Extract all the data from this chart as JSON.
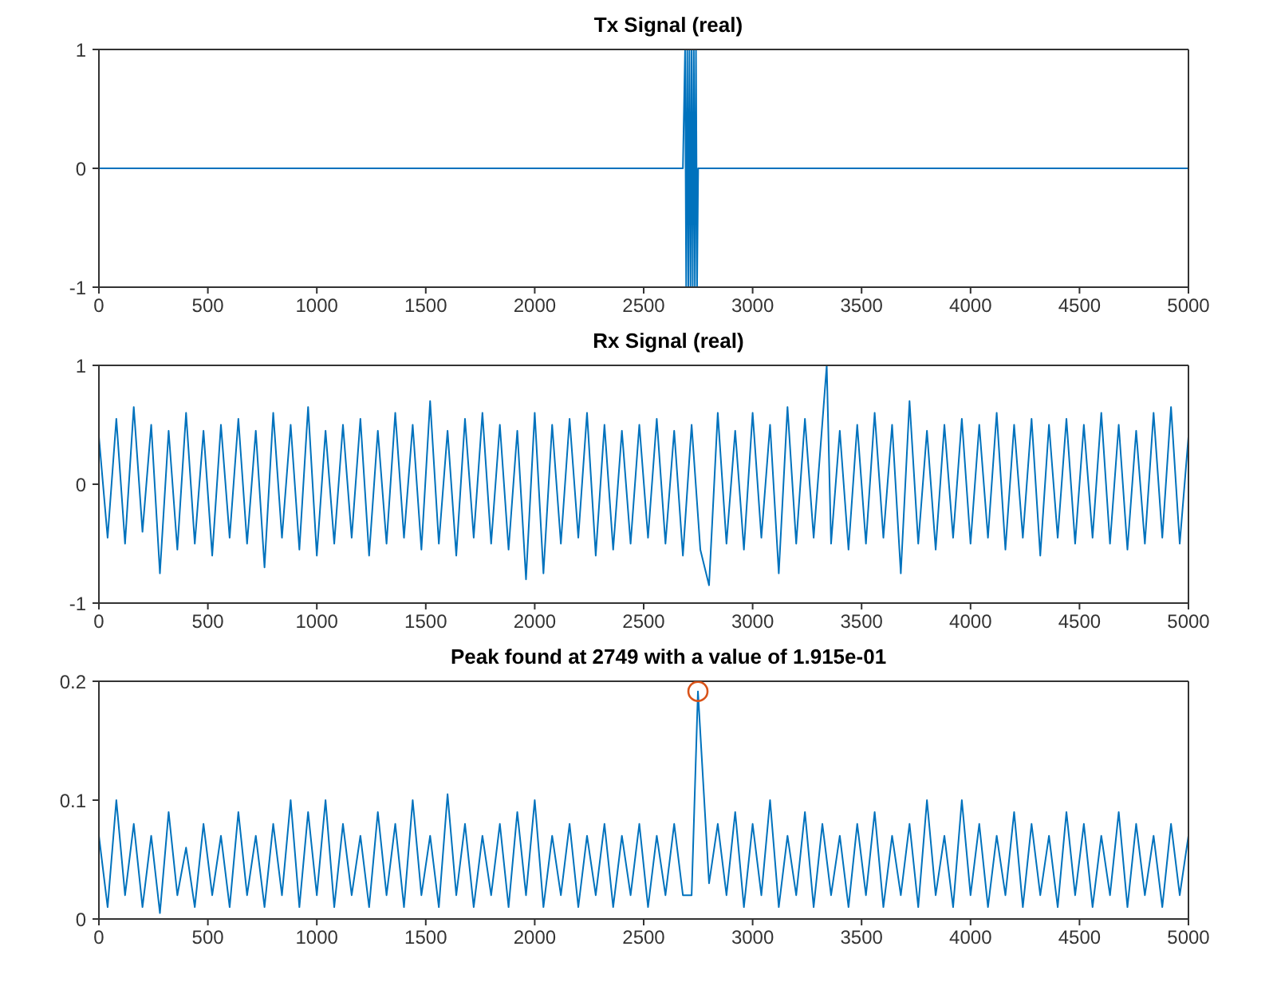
{
  "chart_data": [
    {
      "type": "line",
      "title": "Tx Signal (real)",
      "x": [
        0,
        2680,
        2690,
        2695,
        2700,
        2705,
        2710,
        2715,
        2720,
        2725,
        2730,
        2735,
        2740,
        2745,
        2750,
        5000
      ],
      "series": [
        {
          "color": "#0072bd",
          "values": [
            0,
            0,
            1,
            -1,
            1,
            -1,
            1,
            -1,
            1,
            -1,
            1,
            -1,
            1,
            -1,
            0,
            0
          ]
        }
      ],
      "xlim": [
        0,
        5000
      ],
      "xticks": [
        0,
        500,
        1000,
        1500,
        2000,
        2500,
        3000,
        3500,
        4000,
        4500,
        5000
      ],
      "ylim": [
        -1,
        1
      ],
      "yticks": [
        -1,
        0,
        1
      ]
    },
    {
      "type": "line",
      "title": "Rx Signal (real)",
      "x": [
        0,
        40,
        80,
        120,
        160,
        200,
        240,
        280,
        320,
        360,
        400,
        440,
        480,
        520,
        560,
        600,
        640,
        680,
        720,
        760,
        800,
        840,
        880,
        920,
        960,
        1000,
        1040,
        1080,
        1120,
        1160,
        1200,
        1240,
        1280,
        1320,
        1360,
        1400,
        1440,
        1480,
        1520,
        1560,
        1600,
        1640,
        1680,
        1720,
        1760,
        1800,
        1840,
        1880,
        1920,
        1960,
        2000,
        2040,
        2080,
        2120,
        2160,
        2200,
        2240,
        2280,
        2320,
        2360,
        2400,
        2440,
        2480,
        2520,
        2560,
        2600,
        2640,
        2680,
        2720,
        2760,
        2800,
        2840,
        2880,
        2920,
        2960,
        3000,
        3040,
        3080,
        3120,
        3160,
        3200,
        3240,
        3280,
        3340,
        3360,
        3400,
        3440,
        3480,
        3520,
        3560,
        3600,
        3640,
        3680,
        3720,
        3760,
        3800,
        3840,
        3880,
        3920,
        3960,
        4000,
        4040,
        4080,
        4120,
        4160,
        4200,
        4240,
        4280,
        4320,
        4360,
        4400,
        4440,
        4480,
        4520,
        4560,
        4600,
        4640,
        4680,
        4720,
        4760,
        4800,
        4840,
        4880,
        4920,
        4960,
        5000
      ],
      "series": [
        {
          "color": "#0072bd",
          "values": [
            0.4,
            -0.45,
            0.55,
            -0.5,
            0.65,
            -0.4,
            0.5,
            -0.75,
            0.45,
            -0.55,
            0.6,
            -0.5,
            0.45,
            -0.6,
            0.5,
            -0.45,
            0.55,
            -0.5,
            0.45,
            -0.7,
            0.6,
            -0.45,
            0.5,
            -0.55,
            0.65,
            -0.6,
            0.45,
            -0.5,
            0.5,
            -0.45,
            0.55,
            -0.6,
            0.45,
            -0.5,
            0.6,
            -0.45,
            0.5,
            -0.55,
            0.7,
            -0.5,
            0.45,
            -0.6,
            0.55,
            -0.45,
            0.6,
            -0.5,
            0.5,
            -0.55,
            0.45,
            -0.8,
            0.6,
            -0.75,
            0.5,
            -0.5,
            0.55,
            -0.45,
            0.6,
            -0.6,
            0.5,
            -0.55,
            0.45,
            -0.5,
            0.5,
            -0.45,
            0.55,
            -0.5,
            0.45,
            -0.6,
            0.5,
            -0.55,
            -0.85,
            0.6,
            -0.5,
            0.45,
            -0.55,
            0.6,
            -0.45,
            0.5,
            -0.75,
            0.65,
            -0.5,
            0.55,
            -0.45,
            1.0,
            -0.5,
            0.45,
            -0.55,
            0.5,
            -0.5,
            0.6,
            -0.45,
            0.5,
            -0.75,
            0.7,
            -0.5,
            0.45,
            -0.55,
            0.5,
            -0.45,
            0.55,
            -0.5,
            0.5,
            -0.45,
            0.6,
            -0.55,
            0.5,
            -0.45,
            0.55,
            -0.6,
            0.5,
            -0.45,
            0.55,
            -0.5,
            0.5,
            -0.45,
            0.6,
            -0.5,
            0.5,
            -0.55,
            0.45,
            -0.5,
            0.6,
            -0.45,
            0.65,
            -0.5,
            0.4
          ]
        }
      ],
      "xlim": [
        0,
        5000
      ],
      "xticks": [
        0,
        500,
        1000,
        1500,
        2000,
        2500,
        3000,
        3500,
        4000,
        4500,
        5000
      ],
      "ylim": [
        -1,
        1
      ],
      "yticks": [
        -1,
        0,
        1
      ]
    },
    {
      "type": "line",
      "title": "Peak found at 2749 with a value of 1.915e-01",
      "x": [
        0,
        40,
        80,
        120,
        160,
        200,
        240,
        280,
        320,
        360,
        400,
        440,
        480,
        520,
        560,
        600,
        640,
        680,
        720,
        760,
        800,
        840,
        880,
        920,
        960,
        1000,
        1040,
        1080,
        1120,
        1160,
        1200,
        1240,
        1280,
        1320,
        1360,
        1400,
        1440,
        1480,
        1520,
        1560,
        1600,
        1640,
        1680,
        1720,
        1760,
        1800,
        1840,
        1880,
        1920,
        1960,
        2000,
        2040,
        2080,
        2120,
        2160,
        2200,
        2240,
        2280,
        2320,
        2360,
        2400,
        2440,
        2480,
        2520,
        2560,
        2600,
        2640,
        2680,
        2720,
        2749,
        2800,
        2840,
        2880,
        2920,
        2960,
        3000,
        3040,
        3080,
        3120,
        3160,
        3200,
        3240,
        3280,
        3320,
        3360,
        3400,
        3440,
        3480,
        3520,
        3560,
        3600,
        3640,
        3680,
        3720,
        3760,
        3800,
        3840,
        3880,
        3920,
        3960,
        4000,
        4040,
        4080,
        4120,
        4160,
        4200,
        4240,
        4280,
        4320,
        4360,
        4400,
        4440,
        4480,
        4520,
        4560,
        4600,
        4640,
        4680,
        4720,
        4760,
        4800,
        4840,
        4880,
        4920,
        4960,
        5000
      ],
      "series": [
        {
          "color": "#0072bd",
          "values": [
            0.07,
            0.01,
            0.1,
            0.02,
            0.08,
            0.01,
            0.07,
            0.005,
            0.09,
            0.02,
            0.06,
            0.01,
            0.08,
            0.02,
            0.07,
            0.01,
            0.09,
            0.02,
            0.07,
            0.01,
            0.08,
            0.02,
            0.1,
            0.01,
            0.09,
            0.02,
            0.1,
            0.01,
            0.08,
            0.02,
            0.07,
            0.01,
            0.09,
            0.02,
            0.08,
            0.01,
            0.1,
            0.02,
            0.07,
            0.01,
            0.105,
            0.02,
            0.08,
            0.01,
            0.07,
            0.02,
            0.08,
            0.01,
            0.09,
            0.02,
            0.1,
            0.01,
            0.07,
            0.02,
            0.08,
            0.01,
            0.07,
            0.02,
            0.08,
            0.01,
            0.07,
            0.02,
            0.08,
            0.01,
            0.07,
            0.02,
            0.08,
            0.02,
            0.02,
            0.1915,
            0.03,
            0.08,
            0.02,
            0.09,
            0.01,
            0.08,
            0.02,
            0.1,
            0.01,
            0.07,
            0.02,
            0.09,
            0.01,
            0.08,
            0.02,
            0.07,
            0.01,
            0.08,
            0.02,
            0.09,
            0.01,
            0.07,
            0.02,
            0.08,
            0.01,
            0.1,
            0.02,
            0.07,
            0.01,
            0.1,
            0.02,
            0.08,
            0.01,
            0.07,
            0.02,
            0.09,
            0.01,
            0.08,
            0.02,
            0.07,
            0.01,
            0.09,
            0.02,
            0.08,
            0.01,
            0.07,
            0.02,
            0.09,
            0.01,
            0.08,
            0.02,
            0.07,
            0.01,
            0.08,
            0.02,
            0.07
          ]
        },
        {
          "type": "scatter",
          "x": [
            2749
          ],
          "values": [
            0.1915
          ],
          "color": "#d95319",
          "marker": "circle"
        }
      ],
      "xlim": [
        0,
        5000
      ],
      "xticks": [
        0,
        500,
        1000,
        1500,
        2000,
        2500,
        3000,
        3500,
        4000,
        4500,
        5000
      ],
      "ylim": [
        0,
        0.2
      ],
      "yticks": [
        0,
        0.1,
        0.2
      ]
    }
  ]
}
